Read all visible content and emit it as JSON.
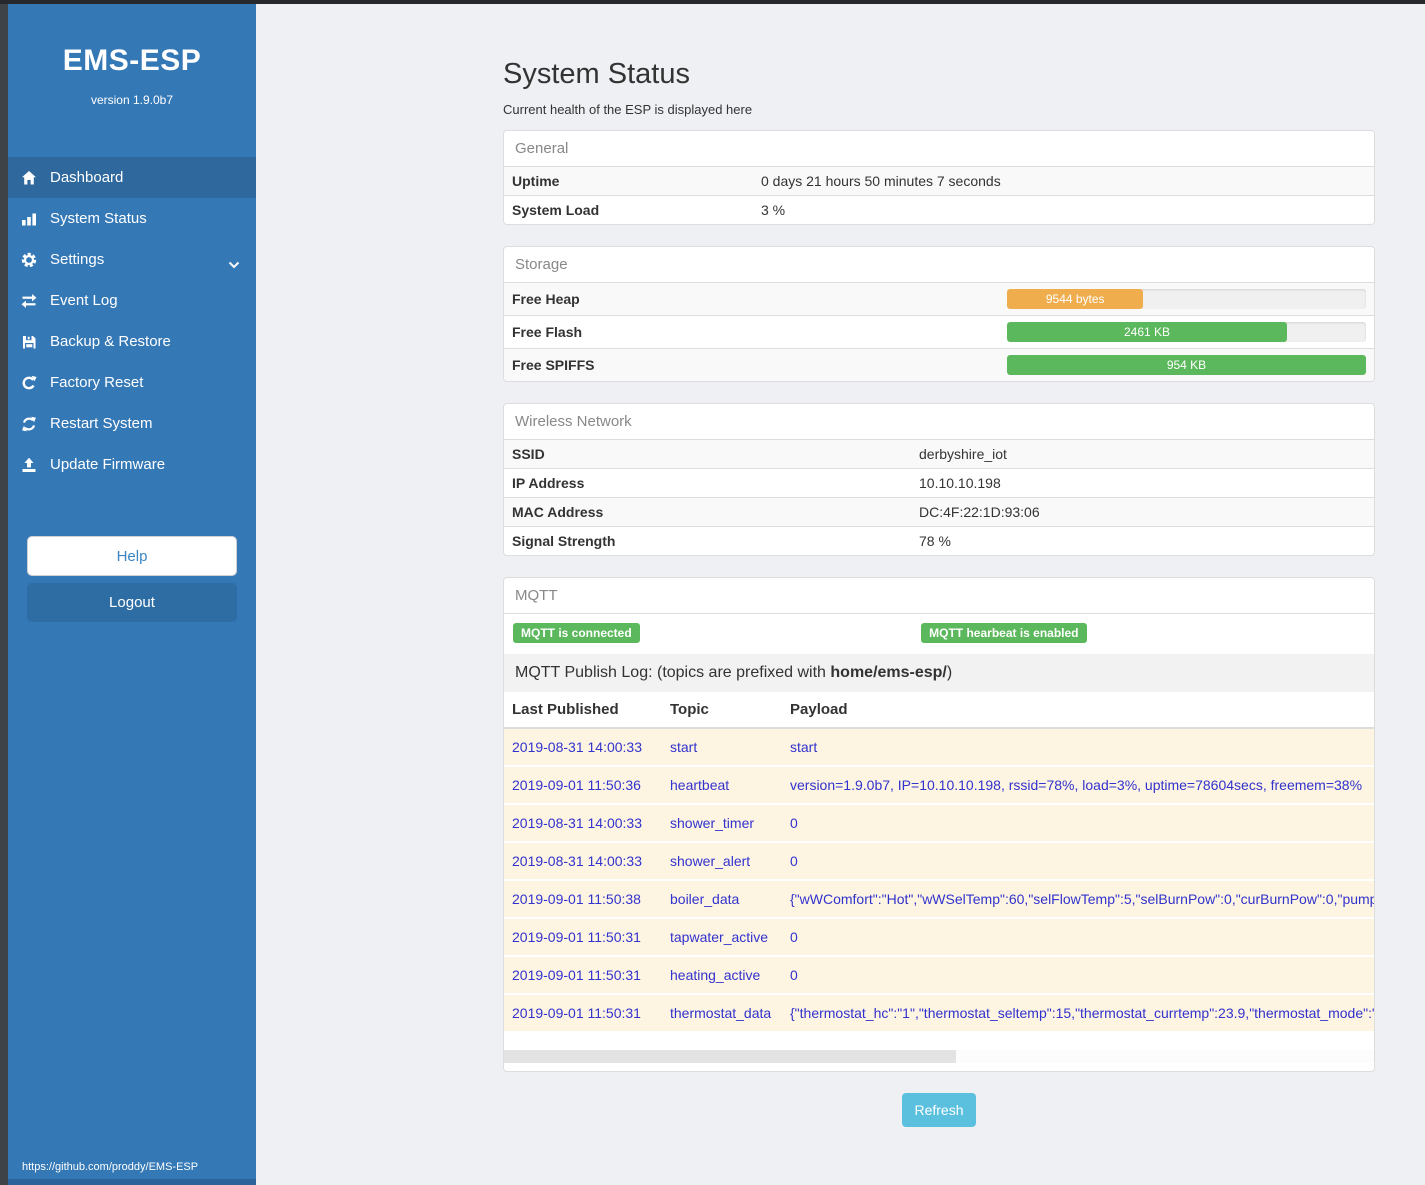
{
  "sidebar": {
    "title": "EMS-ESP",
    "version": "version 1.9.0b7",
    "items": [
      {
        "label": "Dashboard",
        "icon": "home-icon",
        "active": true
      },
      {
        "label": "System Status",
        "icon": "chart-bars-icon",
        "active": false
      },
      {
        "label": "Settings",
        "icon": "gear-icon",
        "active": false,
        "has_submenu": true
      },
      {
        "label": "Event Log",
        "icon": "exchange-arrows-icon",
        "active": false
      },
      {
        "label": "Backup & Restore",
        "icon": "floppy-save-icon",
        "active": false
      },
      {
        "label": "Factory Reset",
        "icon": "rotate-right-icon",
        "active": false
      },
      {
        "label": "Restart System",
        "icon": "refresh-icon",
        "active": false
      },
      {
        "label": "Update Firmware",
        "icon": "upload-icon",
        "active": false
      }
    ],
    "help_label": "Help",
    "logout_label": "Logout",
    "footer_url": "https://github.com/proddy/EMS-ESP"
  },
  "header": {
    "title": "System Status",
    "subtitle": "Current health of the ESP is displayed here"
  },
  "panels": {
    "general": {
      "title": "General",
      "rows": [
        {
          "label": "Uptime",
          "value": "0 days 21 hours 50 minutes 7 seconds"
        },
        {
          "label": "System Load",
          "value": "3 %"
        }
      ]
    },
    "storage": {
      "title": "Storage",
      "rows": [
        {
          "label": "Free Heap",
          "bar_label": "9544 bytes",
          "percent": 38,
          "color": "#f0ad4e"
        },
        {
          "label": "Free Flash",
          "bar_label": "2461 KB",
          "percent": 78,
          "color": "#5cb85c"
        },
        {
          "label": "Free SPIFFS",
          "bar_label": "954 KB",
          "percent": 100,
          "color": "#5cb85c"
        }
      ]
    },
    "wireless": {
      "title": "Wireless Network",
      "rows": [
        {
          "label": "SSID",
          "value": "derbyshire_iot"
        },
        {
          "label": "IP Address",
          "value": "10.10.10.198"
        },
        {
          "label": "MAC Address",
          "value": "DC:4F:22:1D:93:06"
        },
        {
          "label": "Signal Strength",
          "value": "78 %"
        }
      ]
    },
    "mqtt": {
      "title": "MQTT",
      "badges": [
        {
          "text": "MQTT is connected",
          "color": "#5cb85c"
        },
        {
          "text": "MQTT hearbeat is enabled",
          "color": "#5cb85c"
        }
      ],
      "publish_log": {
        "prefix": "MQTT Publish Log: (topics are prefixed with ",
        "bold": "home/ems-esp/",
        "suffix": ")"
      },
      "table": {
        "headers": [
          "Last Published",
          "Topic",
          "Payload"
        ],
        "rows": [
          {
            "time": "2019-08-31 14:00:33",
            "topic": "start",
            "payload": "start"
          },
          {
            "time": "2019-09-01 11:50:36",
            "topic": "heartbeat",
            "payload": "version=1.9.0b7, IP=10.10.10.198, rssid=78%, load=3%, uptime=78604secs, freemem=38%"
          },
          {
            "time": "2019-08-31 14:00:33",
            "topic": "shower_timer",
            "payload": "0"
          },
          {
            "time": "2019-08-31 14:00:33",
            "topic": "shower_alert",
            "payload": "0"
          },
          {
            "time": "2019-09-01 11:50:38",
            "topic": "boiler_data",
            "payload": "{\"wWComfort\":\"Hot\",\"wWSelTemp\":60,\"selFlowTemp\":5,\"selBurnPow\":0,\"curBurnPow\":0,\"pump"
          },
          {
            "time": "2019-09-01 11:50:31",
            "topic": "tapwater_active",
            "payload": "0"
          },
          {
            "time": "2019-09-01 11:50:31",
            "topic": "heating_active",
            "payload": "0"
          },
          {
            "time": "2019-09-01 11:50:31",
            "topic": "thermostat_data",
            "payload": "{\"thermostat_hc\":\"1\",\"thermostat_seltemp\":15,\"thermostat_currtemp\":23.9,\"thermostat_mode\":\""
          }
        ]
      }
    }
  },
  "refresh_label": "Refresh",
  "colors": {
    "sidebar": "#3478b6",
    "sidebar_active": "#2e689d",
    "success": "#5cb85c",
    "warning": "#f0ad4e",
    "info": "#5bc0de",
    "log_row": "#fdf5e2",
    "log_text": "#3232cd"
  }
}
